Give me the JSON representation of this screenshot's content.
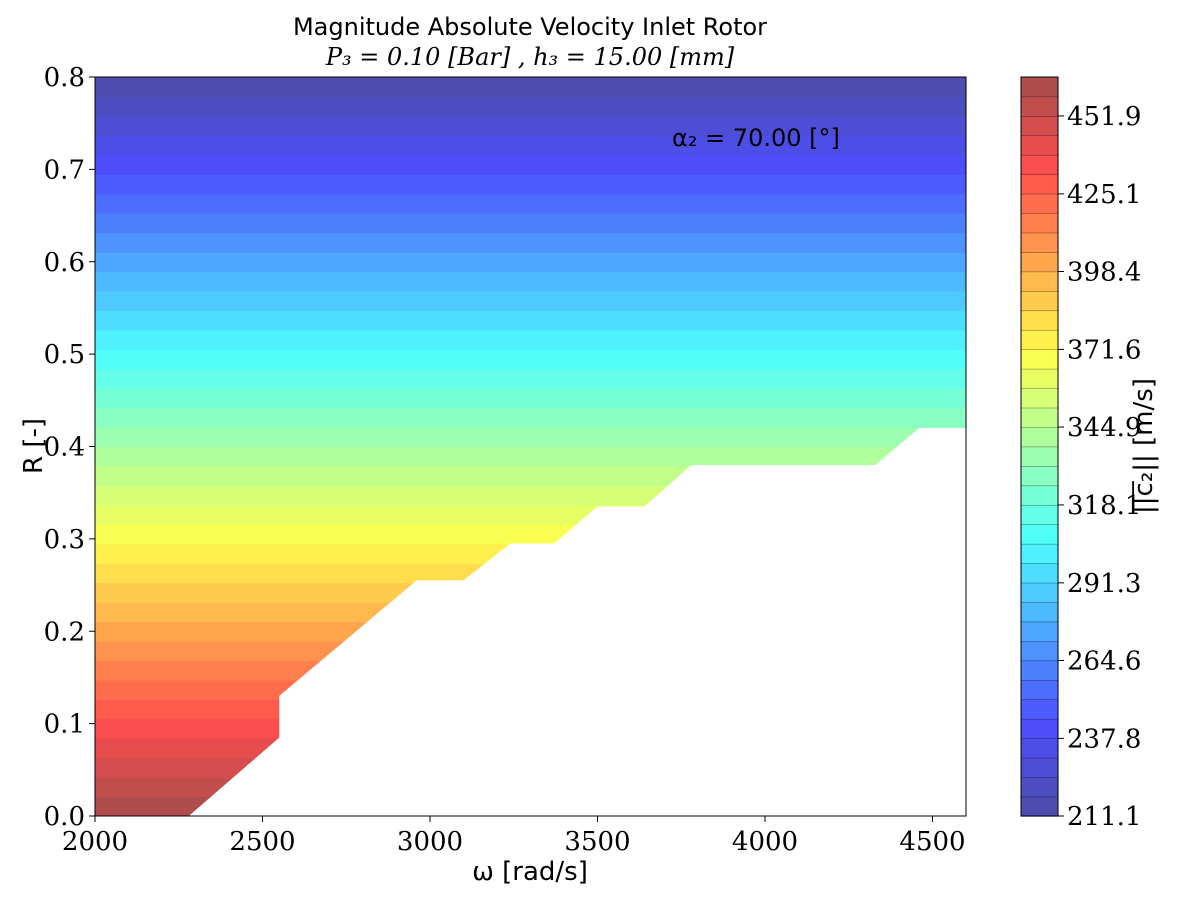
{
  "chart_data": {
    "type": "contourf",
    "title": "Magnitude Absolute Velocity Inlet Rotor",
    "subtitle": "P₃ = 0.10 [Bar] , h₃ = 15.00 [mm]",
    "xlabel": "ω [rad/s]",
    "ylabel": "R [-]",
    "colorbar_label": "||c̅₂|| [m/s]",
    "annotation": "α₂ = 70.00 [°]",
    "xlim": [
      2000,
      4600
    ],
    "ylim": [
      0.0,
      0.8
    ],
    "x_ticks": [
      2000,
      2500,
      3000,
      3500,
      4000,
      4500
    ],
    "x_tick_labels": [
      "2000",
      "2500",
      "3000",
      "3500",
      "4000",
      "4500"
    ],
    "y_ticks": [
      0.0,
      0.1,
      0.2,
      0.3,
      0.4,
      0.5,
      0.6,
      0.7,
      0.8
    ],
    "y_tick_labels": [
      "0.0",
      "0.1",
      "0.2",
      "0.3",
      "0.4",
      "0.5",
      "0.6",
      "0.7",
      "0.8"
    ],
    "colorbar_range": [
      211.1,
      465.3
    ],
    "colorbar_ticks": [
      211.1,
      237.8,
      264.6,
      291.3,
      318.1,
      344.9,
      371.6,
      398.4,
      425.1,
      451.9
    ],
    "colorbar_tick_labels": [
      "211.1",
      "237.8",
      "264.6",
      "291.3",
      "318.1",
      "344.9",
      "371.6",
      "398.4",
      "425.1",
      "451.9"
    ],
    "n_levels": 38,
    "colormap": "jet",
    "alpha": 0.7,
    "contour_orientation": "horizontal bands: velocity decreases as R increases",
    "valid_region_boundary": [
      [
        2280,
        0.0
      ],
      [
        2550,
        0.085
      ],
      [
        2550,
        0.13
      ],
      [
        2960,
        0.255
      ],
      [
        3100,
        0.255
      ],
      [
        3240,
        0.295
      ],
      [
        3370,
        0.295
      ],
      [
        3500,
        0.335
      ],
      [
        3640,
        0.335
      ],
      [
        3780,
        0.38
      ],
      [
        4330,
        0.38
      ],
      [
        4460,
        0.42
      ],
      [
        4600,
        0.42
      ]
    ]
  }
}
